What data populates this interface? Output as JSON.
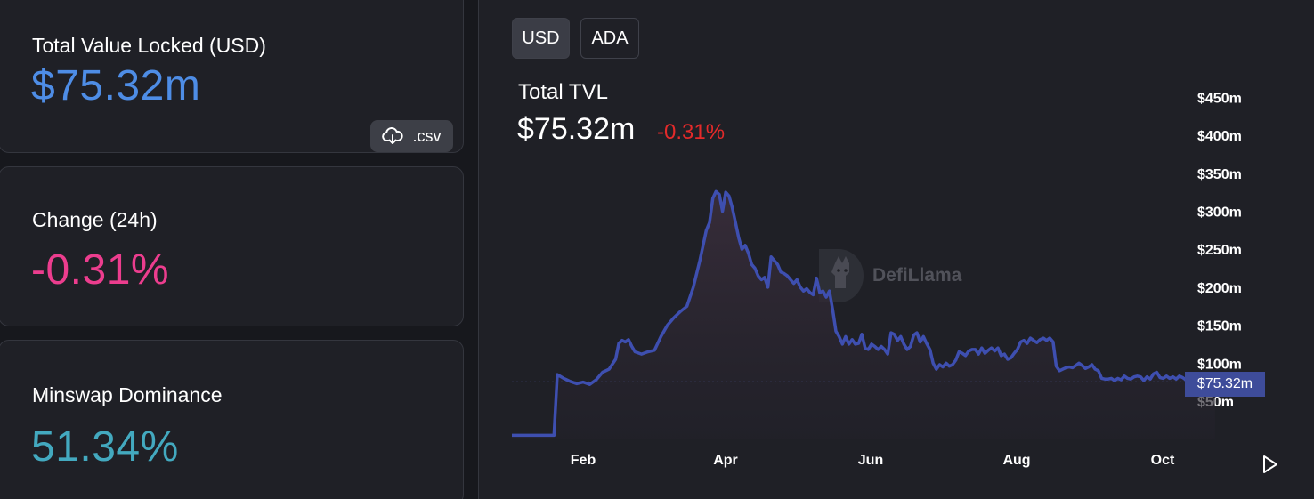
{
  "stats": {
    "tvl": {
      "label": "Total Value Locked (USD)",
      "value": "$75.32m",
      "csv_label": ".csv"
    },
    "change": {
      "label": "Change (24h)",
      "value": "-0.31%"
    },
    "dominance": {
      "label": "Minswap Dominance",
      "value": "51.34%"
    }
  },
  "chart_panel": {
    "toggles": [
      "USD",
      "ADA"
    ],
    "selected_toggle": "USD",
    "title": "Total TVL",
    "value": "$75.32m",
    "change": "-0.31%",
    "watermark": "DefiLlama",
    "current_label": "$75.32m"
  },
  "colors": {
    "tvl_value": "#4e8de6",
    "change_value": "#ec3d8e",
    "dominance_value": "#43a9bf",
    "negative_change": "#e32a2a",
    "series_line": "#3e4fb0",
    "card_bg": "#1f2026",
    "page_bg": "#17181d"
  },
  "icons": {
    "csv": "cloud-download-icon",
    "play": "play-icon",
    "watermark": "defillama-logo"
  },
  "chart_data": {
    "type": "area",
    "title": "Total TVL",
    "series": [
      {
        "values": [
          [
            0.0,
            5
          ],
          [
            0.02,
            5
          ],
          [
            0.05,
            5
          ],
          [
            0.065,
            5
          ],
          [
            0.07,
            85
          ],
          [
            0.08,
            80
          ],
          [
            0.09,
            76
          ],
          [
            0.1,
            73
          ],
          [
            0.11,
            75
          ],
          [
            0.12,
            72
          ],
          [
            0.13,
            78
          ],
          [
            0.14,
            88
          ],
          [
            0.15,
            92
          ],
          [
            0.16,
            105
          ],
          [
            0.165,
            126
          ],
          [
            0.17,
            130
          ],
          [
            0.175,
            128
          ],
          [
            0.18,
            131
          ],
          [
            0.185,
            122
          ],
          [
            0.19,
            115
          ],
          [
            0.2,
            112
          ],
          [
            0.21,
            115
          ],
          [
            0.22,
            117
          ],
          [
            0.23,
            135
          ],
          [
            0.24,
            150
          ],
          [
            0.25,
            160
          ],
          [
            0.26,
            168
          ],
          [
            0.27,
            175
          ],
          [
            0.28,
            200
          ],
          [
            0.29,
            235
          ],
          [
            0.295,
            255
          ],
          [
            0.3,
            275
          ],
          [
            0.305,
            285
          ],
          [
            0.31,
            317
          ],
          [
            0.315,
            326
          ],
          [
            0.32,
            322
          ],
          [
            0.325,
            300
          ],
          [
            0.33,
            325
          ],
          [
            0.335,
            320
          ],
          [
            0.34,
            305
          ],
          [
            0.345,
            285
          ],
          [
            0.35,
            265
          ],
          [
            0.355,
            250
          ],
          [
            0.36,
            255
          ],
          [
            0.365,
            245
          ],
          [
            0.37,
            230
          ],
          [
            0.375,
            225
          ],
          [
            0.38,
            215
          ],
          [
            0.385,
            210
          ],
          [
            0.39,
            213
          ],
          [
            0.395,
            200
          ],
          [
            0.4,
            240
          ],
          [
            0.405,
            235
          ],
          [
            0.41,
            230
          ],
          [
            0.415,
            220
          ],
          [
            0.42,
            218
          ],
          [
            0.425,
            215
          ],
          [
            0.43,
            210
          ],
          [
            0.435,
            205
          ],
          [
            0.44,
            210
          ],
          [
            0.445,
            200
          ],
          [
            0.45,
            195
          ],
          [
            0.455,
            198
          ],
          [
            0.46,
            193
          ],
          [
            0.465,
            190
          ],
          [
            0.47,
            212
          ],
          [
            0.475,
            193
          ],
          [
            0.48,
            195
          ],
          [
            0.485,
            187
          ],
          [
            0.49,
            195
          ],
          [
            0.495,
            170
          ],
          [
            0.5,
            142
          ],
          [
            0.505,
            135
          ],
          [
            0.51,
            125
          ],
          [
            0.515,
            135
          ],
          [
            0.52,
            125
          ],
          [
            0.525,
            131
          ],
          [
            0.53,
            125
          ],
          [
            0.535,
            126
          ],
          [
            0.54,
            138
          ],
          [
            0.545,
            120
          ],
          [
            0.55,
            118
          ],
          [
            0.555,
            125
          ],
          [
            0.56,
            122
          ],
          [
            0.565,
            118
          ],
          [
            0.57,
            122
          ],
          [
            0.575,
            118
          ],
          [
            0.58,
            112
          ],
          [
            0.585,
            140
          ],
          [
            0.59,
            138
          ],
          [
            0.595,
            130
          ],
          [
            0.6,
            135
          ],
          [
            0.605,
            125
          ],
          [
            0.61,
            118
          ],
          [
            0.615,
            122
          ],
          [
            0.62,
            137
          ],
          [
            0.625,
            140
          ],
          [
            0.63,
            128
          ],
          [
            0.635,
            135
          ],
          [
            0.64,
            126
          ],
          [
            0.645,
            118
          ],
          [
            0.65,
            100
          ],
          [
            0.655,
            92
          ],
          [
            0.66,
            98
          ],
          [
            0.665,
            95
          ],
          [
            0.67,
            100
          ],
          [
            0.675,
            96
          ],
          [
            0.68,
            98
          ],
          [
            0.685,
            104
          ],
          [
            0.69,
            115
          ],
          [
            0.695,
            113
          ],
          [
            0.7,
            110
          ],
          [
            0.705,
            116
          ],
          [
            0.71,
            118
          ],
          [
            0.715,
            118
          ],
          [
            0.72,
            112
          ],
          [
            0.725,
            120
          ],
          [
            0.73,
            113
          ],
          [
            0.735,
            117
          ],
          [
            0.74,
            120
          ],
          [
            0.745,
            116
          ],
          [
            0.75,
            120
          ],
          [
            0.755,
            110
          ],
          [
            0.76,
            112
          ],
          [
            0.765,
            105
          ],
          [
            0.77,
            107
          ],
          [
            0.775,
            113
          ],
          [
            0.78,
            118
          ],
          [
            0.785,
            128
          ],
          [
            0.79,
            130
          ],
          [
            0.795,
            126
          ],
          [
            0.8,
            133
          ],
          [
            0.805,
            130
          ],
          [
            0.81,
            127
          ],
          [
            0.815,
            131
          ],
          [
            0.82,
            133
          ],
          [
            0.825,
            130
          ],
          [
            0.83,
            133
          ],
          [
            0.835,
            128
          ],
          [
            0.84,
            96
          ],
          [
            0.845,
            90
          ],
          [
            0.85,
            92
          ],
          [
            0.855,
            94
          ],
          [
            0.86,
            95
          ],
          [
            0.865,
            94
          ],
          [
            0.87,
            97
          ],
          [
            0.875,
            100
          ],
          [
            0.88,
            97
          ],
          [
            0.885,
            93
          ],
          [
            0.89,
            95
          ],
          [
            0.895,
            98
          ],
          [
            0.9,
            92
          ],
          [
            0.905,
            90
          ],
          [
            0.91,
            80
          ],
          [
            0.915,
            79
          ],
          [
            0.92,
            79
          ],
          [
            0.925,
            80
          ],
          [
            0.93,
            77
          ],
          [
            0.935,
            80
          ],
          [
            0.94,
            78
          ],
          [
            0.945,
            83
          ],
          [
            0.95,
            80
          ],
          [
            0.955,
            79
          ],
          [
            0.96,
            82
          ],
          [
            0.965,
            83
          ],
          [
            0.97,
            82
          ],
          [
            0.975,
            77
          ],
          [
            0.98,
            82
          ],
          [
            0.985,
            79
          ],
          [
            0.99,
            86
          ],
          [
            0.995,
            88
          ],
          [
            1.0,
            81
          ],
          [
            1.005,
            80
          ],
          [
            1.01,
            83
          ],
          [
            1.015,
            80
          ],
          [
            1.02,
            82
          ],
          [
            1.025,
            79
          ],
          [
            1.03,
            83
          ],
          [
            1.035,
            81
          ],
          [
            1.04,
            78
          ],
          [
            1.045,
            80
          ],
          [
            1.05,
            79
          ],
          [
            1.055,
            77
          ],
          [
            1.06,
            76
          ],
          [
            1.065,
            75
          ],
          [
            1.07,
            77
          ],
          [
            1.075,
            75
          ],
          [
            1.08,
            74
          ],
          [
            1.085,
            75
          ]
        ]
      }
    ],
    "x_ticks": [
      "Feb",
      "Apr",
      "Jun",
      "Aug",
      "Oct"
    ],
    "y_ticks": [
      "$50m",
      "$100m",
      "$150m",
      "$200m",
      "$250m",
      "$300m",
      "$350m",
      "$400m",
      "$450m"
    ],
    "current_value": 75.32,
    "ylim": [
      0,
      450
    ],
    "grid": false
  }
}
